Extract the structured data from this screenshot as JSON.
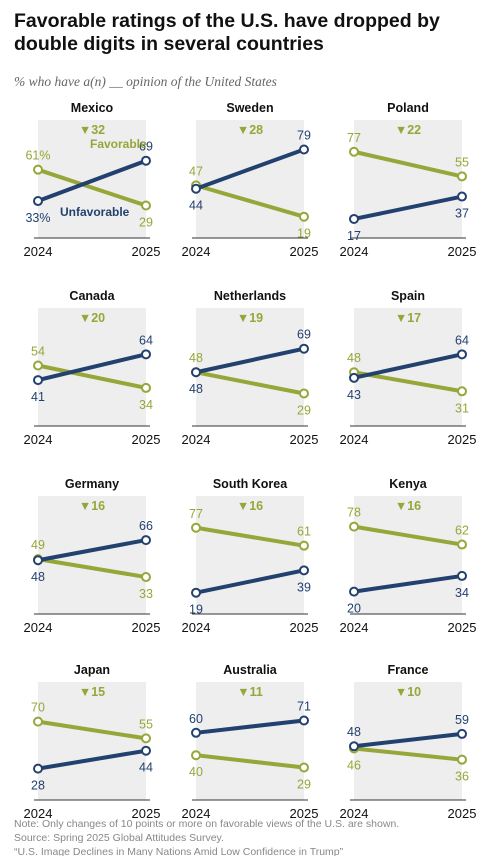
{
  "title": "Favorable ratings of the U.S. have dropped by double digits in several countries",
  "subtitle": "% who have a(n) __ opinion of the United States",
  "colors": {
    "favorable": "#97a638",
    "unfavorable": "#23416f",
    "shade": "#eeeeee",
    "axis": "#333333"
  },
  "chart_data": {
    "type": "line",
    "x": [
      "2024",
      "2025"
    ],
    "ylim": [
      0,
      100
    ],
    "series_names": [
      "Favorable",
      "Unfavorable"
    ],
    "panels": [
      {
        "country": "Mexico",
        "change": "▼32",
        "favorable": [
          61,
          29
        ],
        "unfavorable": [
          33,
          69
        ],
        "fav_labels": [
          "61%",
          "29"
        ],
        "unfav_labels": [
          "33%",
          "69"
        ]
      },
      {
        "country": "Sweden",
        "change": "▼28",
        "favorable": [
          47,
          19
        ],
        "unfavorable": [
          44,
          79
        ],
        "fav_labels": [
          "47",
          "19"
        ],
        "unfav_labels": [
          "44",
          "79"
        ]
      },
      {
        "country": "Poland",
        "change": "▼22",
        "favorable": [
          77,
          55
        ],
        "unfavorable": [
          17,
          37
        ],
        "fav_labels": [
          "77",
          "55"
        ],
        "unfav_labels": [
          "17",
          "37"
        ]
      },
      {
        "country": "Canada",
        "change": "▼20",
        "favorable": [
          54,
          34
        ],
        "unfavorable": [
          41,
          64
        ],
        "fav_labels": [
          "54",
          "34"
        ],
        "unfav_labels": [
          "41",
          "64"
        ]
      },
      {
        "country": "Netherlands",
        "change": "▼19",
        "favorable": [
          48,
          29
        ],
        "unfavorable": [
          48,
          69
        ],
        "fav_labels": [
          "48",
          "29"
        ],
        "unfav_labels": [
          "48",
          "69"
        ]
      },
      {
        "country": "Spain",
        "change": "▼17",
        "favorable": [
          48,
          31
        ],
        "unfavorable": [
          43,
          64
        ],
        "fav_labels": [
          "48",
          "31"
        ],
        "unfav_labels": [
          "43",
          "64"
        ]
      },
      {
        "country": "Germany",
        "change": "▼16",
        "favorable": [
          49,
          33
        ],
        "unfavorable": [
          48,
          66
        ],
        "fav_labels": [
          "49",
          "33"
        ],
        "unfav_labels": [
          "48",
          "66"
        ]
      },
      {
        "country": "South Korea",
        "change": "▼16",
        "favorable": [
          77,
          61
        ],
        "unfavorable": [
          19,
          39
        ],
        "fav_labels": [
          "77",
          "61"
        ],
        "unfav_labels": [
          "19",
          "39"
        ]
      },
      {
        "country": "Kenya",
        "change": "▼16",
        "favorable": [
          78,
          62
        ],
        "unfavorable": [
          20,
          34
        ],
        "fav_labels": [
          "78",
          "62"
        ],
        "unfav_labels": [
          "20",
          "34"
        ]
      },
      {
        "country": "Japan",
        "change": "▼15",
        "favorable": [
          70,
          55
        ],
        "unfavorable": [
          28,
          44
        ],
        "fav_labels": [
          "70",
          "55"
        ],
        "unfav_labels": [
          "28",
          "44"
        ]
      },
      {
        "country": "Australia",
        "change": "▼11",
        "favorable": [
          40,
          29
        ],
        "unfavorable": [
          60,
          71
        ],
        "fav_labels": [
          "40",
          "29"
        ],
        "unfav_labels": [
          "60",
          "71"
        ]
      },
      {
        "country": "France",
        "change": "▼10",
        "favorable": [
          46,
          36
        ],
        "unfavorable": [
          48,
          59
        ],
        "fav_labels": [
          "46",
          "36"
        ],
        "unfav_labels": [
          "48",
          "59"
        ]
      }
    ]
  },
  "notes": {
    "note": "Note: Only changes of 10 points or more on favorable views of the U.S. are shown.",
    "source": "Source: Spring 2025 Global Attitudes Survey.",
    "report": "“U.S. Image Declines in Many Nations Amid Low Confidence in Trump”"
  }
}
